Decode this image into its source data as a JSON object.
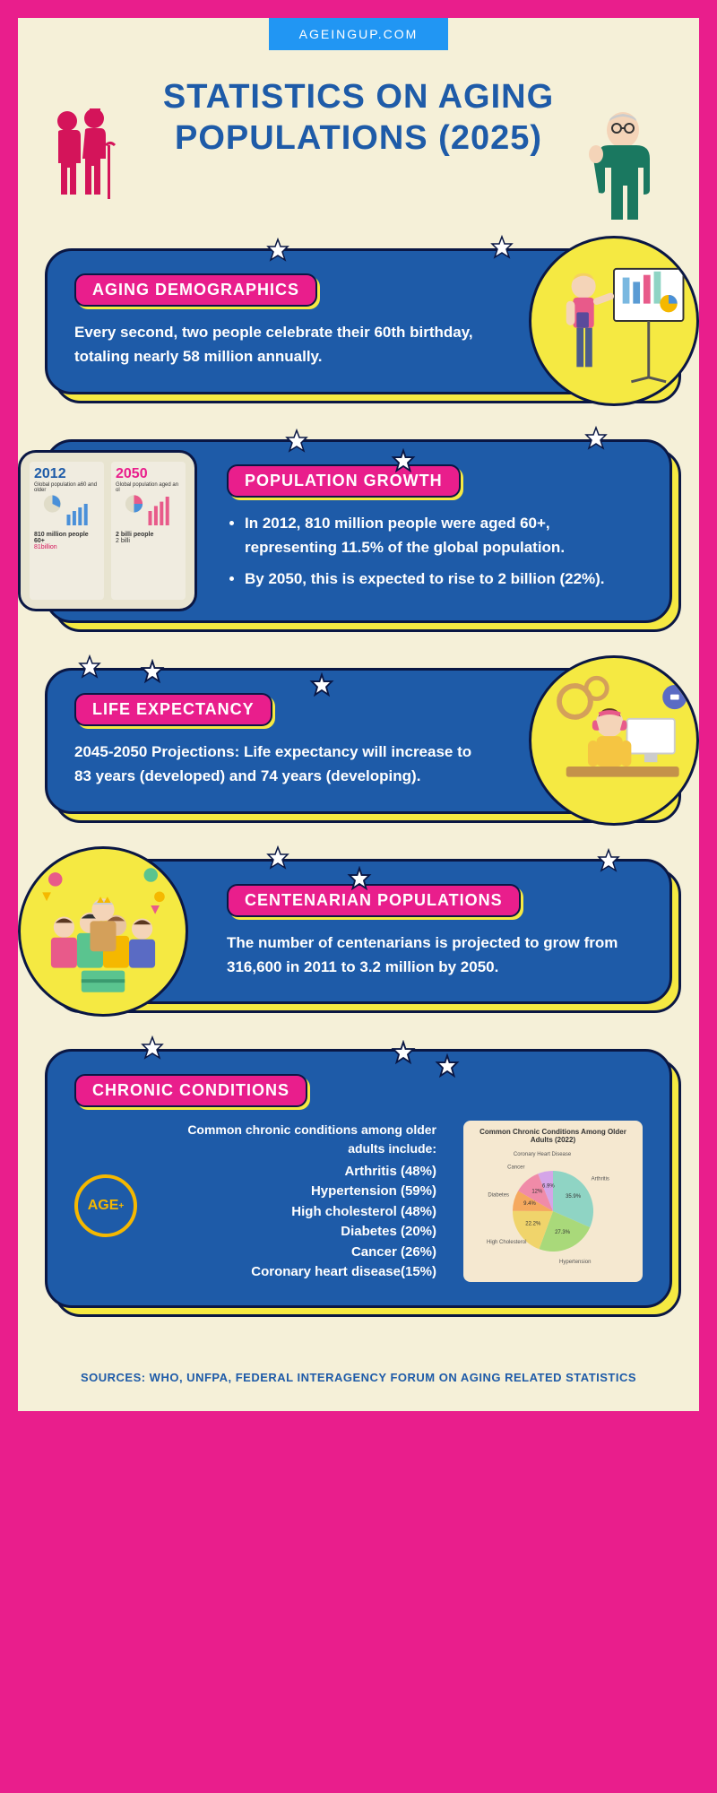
{
  "header": {
    "badge": "AGEINGUP.COM",
    "title": "STATISTICS ON AGING POPULATIONS (2025)"
  },
  "colors": {
    "pink": "#e91e8c",
    "cream": "#f5f0d8",
    "blue": "#1e5ba8",
    "navy": "#0a1744",
    "yellow": "#f5e942",
    "badge_blue": "#2196f3"
  },
  "cards": [
    {
      "key": "demographics",
      "pill": "AGING DEMOGRAPHICS",
      "text": "Every second, two people celebrate their 60th birthday, totaling nearly 58 million annually.",
      "image_side": "right",
      "image_kind": "circle",
      "image_desc": "presenter-chart"
    },
    {
      "key": "growth",
      "pill": "POPULATION GROWTH",
      "bullets": [
        "In 2012, 810 million people were aged 60+, representing 11.5% of the global population.",
        "By 2050, this is expected to rise to 2 billion (22%)."
      ],
      "image_side": "left",
      "image_kind": "square",
      "image_desc": "2012-2050-comparison",
      "chart_years": [
        "2012",
        "2050"
      ],
      "chart_labels": [
        "Global population a60 and older",
        "Global population aged an ol"
      ],
      "chart_values": [
        "810 million people 60+",
        "2 billi people"
      ]
    },
    {
      "key": "life",
      "pill": "LIFE EXPECTANCY",
      "text": "2045-2050 Projections: Life expectancy will increase to 83 years (developed) and 74 years (developing).",
      "image_side": "right",
      "image_kind": "circle",
      "image_desc": "person-computer-gears"
    },
    {
      "key": "centenarians",
      "pill": "CENTENARIAN POPULATIONS",
      "text": "The number of centenarians is projected to grow from 316,600 in 2011 to 3.2 million by 2050.",
      "image_side": "left",
      "image_kind": "circle",
      "image_desc": "celebration-people"
    },
    {
      "key": "chronic",
      "pill": "CHRONIC CONDITIONS",
      "intro": "Common chronic conditions among older adults include:",
      "conditions": [
        "Arthritis (48%)",
        "Hypertension (59%)",
        "High cholesterol (48%)",
        "Diabetes (20%)",
        "Cancer (26%)",
        "Coronary heart disease(15%)"
      ],
      "age_badge": "AGE",
      "pie_title": "Common Chronic Conditions Among Older Adults (2022)",
      "pie_slices": [
        {
          "label": "Arthritis",
          "value": 35.9,
          "color": "#8fd4c4"
        },
        {
          "label": "Hypertension",
          "value": 27.3,
          "color": "#a9d97a"
        },
        {
          "label": "High Cholesterol",
          "value": 22.2,
          "color": "#f0d46b"
        },
        {
          "label": "Diabetes",
          "value": 9.4,
          "color": "#f5a95e"
        },
        {
          "label": "Cancer",
          "value": 12.0,
          "color": "#f08ba8"
        },
        {
          "label": "Coronary Heart Disease",
          "value": 6.9,
          "color": "#d4a5e8"
        }
      ]
    }
  ],
  "sources": "SOURCES: WHO, UNFPA, FEDERAL INTERAGENCY FORUM ON AGING RELATED STATISTICS"
}
